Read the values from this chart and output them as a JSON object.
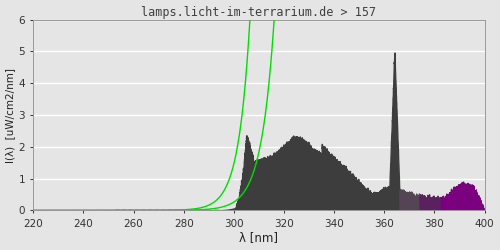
{
  "title": "lamps.licht-im-terrarium.de > 157",
  "xlabel": "λ [nm]",
  "ylabel": "I(λ)  [uW/cm2/nm]",
  "xlim": [
    220,
    400
  ],
  "ylim": [
    0.0,
    6.0
  ],
  "yticks": [
    0.0,
    1.0,
    2.0,
    3.0,
    4.0,
    5.0,
    6.0
  ],
  "xticks": [
    220,
    240,
    260,
    280,
    300,
    320,
    340,
    360,
    380,
    400
  ],
  "bg_color": "#e5e5e5",
  "grid_color": "#ffffff",
  "title_color": "#404040",
  "green_line_color": "#00dd00"
}
